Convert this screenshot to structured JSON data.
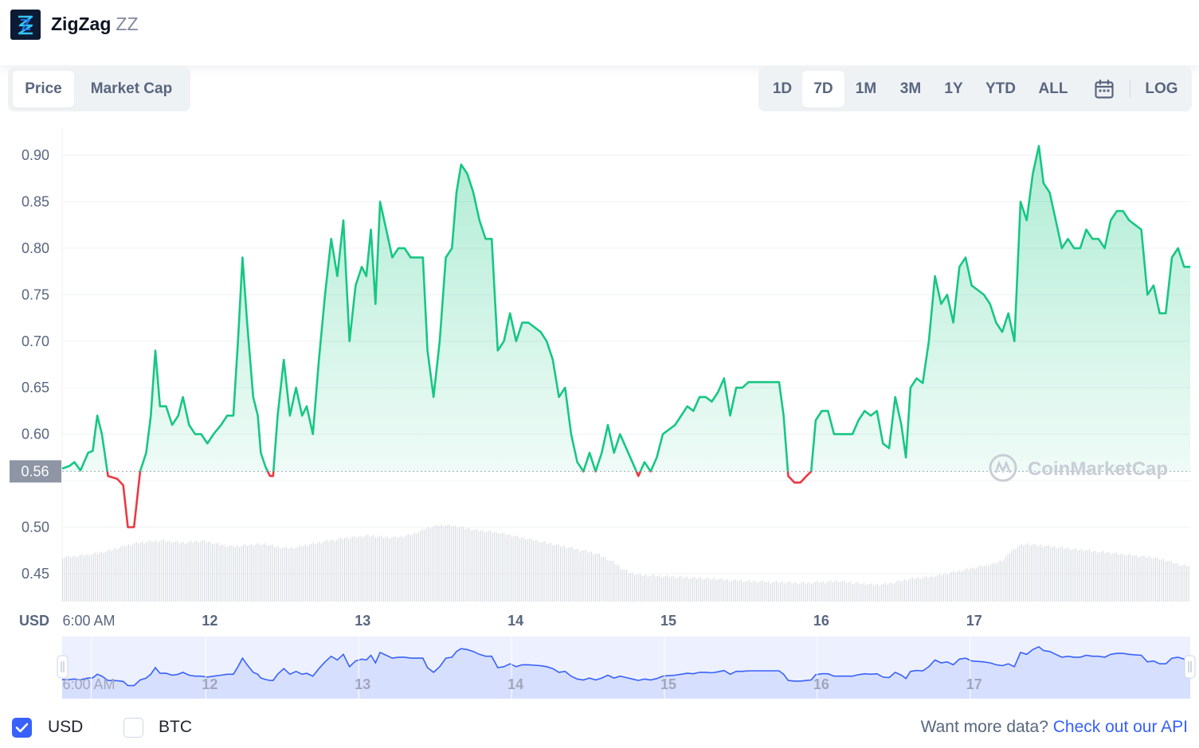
{
  "header": {
    "coin_name": "ZigZag",
    "coin_symbol": "ZZ"
  },
  "tabs": [
    {
      "label": "Price",
      "active": true
    },
    {
      "label": "Market Cap",
      "active": false
    }
  ],
  "ranges": [
    {
      "label": "1D",
      "active": false
    },
    {
      "label": "7D",
      "active": true
    },
    {
      "label": "1M",
      "active": false
    },
    {
      "label": "3M",
      "active": false
    },
    {
      "label": "1Y",
      "active": false
    },
    {
      "label": "YTD",
      "active": false
    },
    {
      "label": "ALL",
      "active": false
    }
  ],
  "log_label": "LOG",
  "calendar_icon": "calendar-icon",
  "watermark": "CoinMarketCap",
  "colors": {
    "up_line": "#16c784",
    "down_line": "#ea3943",
    "navigator_line": "#3861fb",
    "accent": "#3861fb"
  },
  "chart_data": {
    "type": "line",
    "currency_label": "USD",
    "reference_value": 0.56,
    "reference_label": "0.56",
    "ylim": [
      0.42,
      0.93
    ],
    "y_ticks": [
      0.45,
      0.5,
      0.55,
      0.6,
      0.65,
      0.7,
      0.75,
      0.8,
      0.85,
      0.9
    ],
    "y_tick_labels": [
      "0.45",
      "0.50",
      "",
      "0.60",
      "0.65",
      "0.70",
      "0.75",
      "0.80",
      "0.85",
      "0.90"
    ],
    "xlim": [
      0,
      7
    ],
    "x_ticks": [
      {
        "x": 0.19,
        "label": "6:00 AM"
      },
      {
        "x": 0.94,
        "label": "12"
      },
      {
        "x": 1.94,
        "label": "13"
      },
      {
        "x": 2.94,
        "label": "14"
      },
      {
        "x": 3.94,
        "label": "15"
      },
      {
        "x": 4.94,
        "label": "16"
      },
      {
        "x": 5.94,
        "label": "17"
      }
    ],
    "price": [
      [
        0,
        0.563
      ],
      [
        0.05,
        0.566
      ],
      [
        0.08,
        0.57
      ],
      [
        0.12,
        0.561
      ],
      [
        0.17,
        0.58
      ],
      [
        0.2,
        0.582
      ],
      [
        0.23,
        0.62
      ],
      [
        0.26,
        0.6
      ],
      [
        0.3,
        0.555
      ],
      [
        0.36,
        0.552
      ],
      [
        0.4,
        0.545
      ],
      [
        0.43,
        0.5
      ],
      [
        0.47,
        0.5
      ],
      [
        0.51,
        0.56
      ],
      [
        0.55,
        0.58
      ],
      [
        0.58,
        0.62
      ],
      [
        0.61,
        0.69
      ],
      [
        0.64,
        0.63
      ],
      [
        0.68,
        0.63
      ],
      [
        0.72,
        0.61
      ],
      [
        0.76,
        0.62
      ],
      [
        0.79,
        0.64
      ],
      [
        0.83,
        0.61
      ],
      [
        0.87,
        0.6
      ],
      [
        0.91,
        0.6
      ],
      [
        0.95,
        0.59
      ],
      [
        0.99,
        0.6
      ],
      [
        1.04,
        0.61
      ],
      [
        1.08,
        0.62
      ],
      [
        1.12,
        0.62
      ],
      [
        1.15,
        0.7
      ],
      [
        1.18,
        0.79
      ],
      [
        1.21,
        0.72
      ],
      [
        1.25,
        0.64
      ],
      [
        1.28,
        0.62
      ],
      [
        1.3,
        0.58
      ],
      [
        1.33,
        0.565
      ],
      [
        1.36,
        0.555
      ],
      [
        1.38,
        0.555
      ],
      [
        1.41,
        0.62
      ],
      [
        1.45,
        0.68
      ],
      [
        1.49,
        0.62
      ],
      [
        1.53,
        0.65
      ],
      [
        1.57,
        0.62
      ],
      [
        1.6,
        0.63
      ],
      [
        1.64,
        0.6
      ],
      [
        1.68,
        0.68
      ],
      [
        1.72,
        0.75
      ],
      [
        1.76,
        0.81
      ],
      [
        1.8,
        0.77
      ],
      [
        1.84,
        0.83
      ],
      [
        1.88,
        0.7
      ],
      [
        1.92,
        0.76
      ],
      [
        1.96,
        0.78
      ],
      [
        1.99,
        0.77
      ],
      [
        2.02,
        0.82
      ],
      [
        2.05,
        0.74
      ],
      [
        2.08,
        0.85
      ],
      [
        2.12,
        0.82
      ],
      [
        2.16,
        0.79
      ],
      [
        2.2,
        0.8
      ],
      [
        2.24,
        0.8
      ],
      [
        2.28,
        0.79
      ],
      [
        2.32,
        0.79
      ],
      [
        2.36,
        0.79
      ],
      [
        2.39,
        0.69
      ],
      [
        2.43,
        0.64
      ],
      [
        2.47,
        0.7
      ],
      [
        2.51,
        0.79
      ],
      [
        2.55,
        0.8
      ],
      [
        2.58,
        0.86
      ],
      [
        2.61,
        0.89
      ],
      [
        2.65,
        0.88
      ],
      [
        2.69,
        0.86
      ],
      [
        2.73,
        0.83
      ],
      [
        2.77,
        0.81
      ],
      [
        2.81,
        0.81
      ],
      [
        2.85,
        0.69
      ],
      [
        2.89,
        0.7
      ],
      [
        2.93,
        0.73
      ],
      [
        2.97,
        0.7
      ],
      [
        3.01,
        0.72
      ],
      [
        3.05,
        0.72
      ],
      [
        3.09,
        0.715
      ],
      [
        3.13,
        0.71
      ],
      [
        3.17,
        0.7
      ],
      [
        3.21,
        0.68
      ],
      [
        3.25,
        0.64
      ],
      [
        3.29,
        0.65
      ],
      [
        3.33,
        0.6
      ],
      [
        3.37,
        0.57
      ],
      [
        3.41,
        0.56
      ],
      [
        3.45,
        0.58
      ],
      [
        3.49,
        0.56
      ],
      [
        3.53,
        0.58
      ],
      [
        3.57,
        0.61
      ],
      [
        3.61,
        0.58
      ],
      [
        3.65,
        0.6
      ],
      [
        3.69,
        0.585
      ],
      [
        3.73,
        0.57
      ],
      [
        3.77,
        0.555
      ],
      [
        3.81,
        0.57
      ],
      [
        3.85,
        0.56
      ],
      [
        3.89,
        0.575
      ],
      [
        3.93,
        0.6
      ],
      [
        3.97,
        0.605
      ],
      [
        4.01,
        0.61
      ],
      [
        4.05,
        0.62
      ],
      [
        4.09,
        0.63
      ],
      [
        4.13,
        0.625
      ],
      [
        4.17,
        0.64
      ],
      [
        4.21,
        0.64
      ],
      [
        4.25,
        0.635
      ],
      [
        4.29,
        0.645
      ],
      [
        4.33,
        0.66
      ],
      [
        4.37,
        0.62
      ],
      [
        4.41,
        0.65
      ],
      [
        4.45,
        0.65
      ],
      [
        4.49,
        0.656
      ],
      [
        4.53,
        0.656
      ],
      [
        4.57,
        0.656
      ],
      [
        4.61,
        0.656
      ],
      [
        4.65,
        0.656
      ],
      [
        4.69,
        0.656
      ],
      [
        4.72,
        0.62
      ],
      [
        4.75,
        0.555
      ],
      [
        4.79,
        0.548
      ],
      [
        4.83,
        0.548
      ],
      [
        4.87,
        0.555
      ],
      [
        4.9,
        0.56
      ],
      [
        4.93,
        0.615
      ],
      [
        4.97,
        0.625
      ],
      [
        5.01,
        0.625
      ],
      [
        5.05,
        0.6
      ],
      [
        5.09,
        0.6
      ],
      [
        5.13,
        0.6
      ],
      [
        5.17,
        0.6
      ],
      [
        5.21,
        0.615
      ],
      [
        5.25,
        0.625
      ],
      [
        5.29,
        0.62
      ],
      [
        5.33,
        0.625
      ],
      [
        5.37,
        0.59
      ],
      [
        5.41,
        0.585
      ],
      [
        5.45,
        0.64
      ],
      [
        5.49,
        0.61
      ],
      [
        5.52,
        0.575
      ],
      [
        5.55,
        0.65
      ],
      [
        5.59,
        0.66
      ],
      [
        5.63,
        0.655
      ],
      [
        5.67,
        0.7
      ],
      [
        5.71,
        0.77
      ],
      [
        5.75,
        0.74
      ],
      [
        5.79,
        0.75
      ],
      [
        5.83,
        0.72
      ],
      [
        5.87,
        0.78
      ],
      [
        5.91,
        0.79
      ],
      [
        5.95,
        0.76
      ],
      [
        5.99,
        0.755
      ],
      [
        6.03,
        0.75
      ],
      [
        6.07,
        0.74
      ],
      [
        6.11,
        0.72
      ],
      [
        6.15,
        0.71
      ],
      [
        6.19,
        0.73
      ],
      [
        6.23,
        0.7
      ],
      [
        6.27,
        0.85
      ],
      [
        6.31,
        0.83
      ],
      [
        6.35,
        0.88
      ],
      [
        6.39,
        0.91
      ],
      [
        6.42,
        0.87
      ],
      [
        6.46,
        0.86
      ],
      [
        6.5,
        0.83
      ],
      [
        6.54,
        0.8
      ],
      [
        6.58,
        0.81
      ],
      [
        6.62,
        0.8
      ],
      [
        6.66,
        0.8
      ],
      [
        6.7,
        0.82
      ],
      [
        6.74,
        0.81
      ],
      [
        6.78,
        0.81
      ],
      [
        6.82,
        0.8
      ],
      [
        6.86,
        0.83
      ],
      [
        6.9,
        0.84
      ],
      [
        6.94,
        0.84
      ],
      [
        6.98,
        0.83
      ],
      [
        7.02,
        0.825
      ],
      [
        7.06,
        0.82
      ],
      [
        7.1,
        0.75
      ],
      [
        7.14,
        0.76
      ],
      [
        7.18,
        0.73
      ],
      [
        7.22,
        0.73
      ],
      [
        7.26,
        0.79
      ],
      [
        7.3,
        0.8
      ],
      [
        7.34,
        0.78
      ],
      [
        7.38,
        0.78
      ]
    ],
    "volume_bars": [
      0.52,
      0.53,
      0.54,
      0.55,
      0.56,
      0.58,
      0.6,
      0.63,
      0.66,
      0.68,
      0.7,
      0.71,
      0.72,
      0.72,
      0.71,
      0.7,
      0.7,
      0.71,
      0.72,
      0.7,
      0.68,
      0.66,
      0.65,
      0.66,
      0.67,
      0.68,
      0.68,
      0.66,
      0.64,
      0.63,
      0.64,
      0.66,
      0.68,
      0.7,
      0.72,
      0.73,
      0.75,
      0.76,
      0.77,
      0.78,
      0.78,
      0.77,
      0.76,
      0.76,
      0.78,
      0.8,
      0.84,
      0.88,
      0.9,
      0.91,
      0.9,
      0.89,
      0.87,
      0.85,
      0.84,
      0.83,
      0.82,
      0.8,
      0.78,
      0.76,
      0.74,
      0.72,
      0.7,
      0.68,
      0.66,
      0.64,
      0.62,
      0.6,
      0.58,
      0.55,
      0.5,
      0.45,
      0.38,
      0.33,
      0.31,
      0.3,
      0.3,
      0.29,
      0.29,
      0.28,
      0.28,
      0.27,
      0.27,
      0.26,
      0.26,
      0.25,
      0.24,
      0.24,
      0.23,
      0.23,
      0.23,
      0.22,
      0.22,
      0.22,
      0.21,
      0.21,
      0.21,
      0.22,
      0.22,
      0.23,
      0.23,
      0.22,
      0.21,
      0.2,
      0.19,
      0.19,
      0.2,
      0.22,
      0.24,
      0.26,
      0.27,
      0.28,
      0.29,
      0.31,
      0.33,
      0.35,
      0.37,
      0.39,
      0.41,
      0.43,
      0.45,
      0.5,
      0.6,
      0.66,
      0.68,
      0.67,
      0.66,
      0.65,
      0.64,
      0.63,
      0.62,
      0.61,
      0.6,
      0.59,
      0.58,
      0.57,
      0.56,
      0.55,
      0.54,
      0.53,
      0.52,
      0.5,
      0.48,
      0.45,
      0.42
    ],
    "navigator_xlim": [
      0,
      7
    ],
    "navigator_ticks": [
      {
        "x": 0.19,
        "label": "6:00 AM"
      },
      {
        "x": 0.94,
        "label": "12"
      },
      {
        "x": 1.94,
        "label": "13"
      },
      {
        "x": 2.94,
        "label": "14"
      },
      {
        "x": 3.94,
        "label": "15"
      },
      {
        "x": 4.94,
        "label": "16"
      },
      {
        "x": 5.94,
        "label": "17"
      }
    ],
    "grid": true,
    "legend": "none"
  },
  "footer": {
    "usd_label": "USD",
    "usd_checked": true,
    "btc_label": "BTC",
    "btc_checked": false,
    "more_text": "Want more data?",
    "api_link": "Check out our API"
  }
}
